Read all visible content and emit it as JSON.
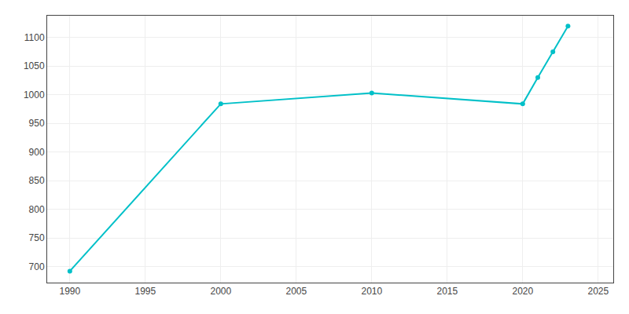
{
  "chart_data": {
    "type": "line",
    "x": [
      1990,
      2000,
      2010,
      2020,
      2021,
      2022,
      2023
    ],
    "values": [
      692,
      984,
      1003,
      984,
      1030,
      1075,
      1120
    ],
    "color": "#00c0c8",
    "marker": "circle",
    "xlim": [
      1988.5,
      2026
    ],
    "ylim": [
      672,
      1138
    ],
    "xticks": [
      1990,
      1995,
      2000,
      2005,
      2010,
      2015,
      2020,
      2025
    ],
    "yticks": [
      700,
      750,
      800,
      850,
      900,
      950,
      1000,
      1050,
      1100
    ],
    "grid": true
  }
}
